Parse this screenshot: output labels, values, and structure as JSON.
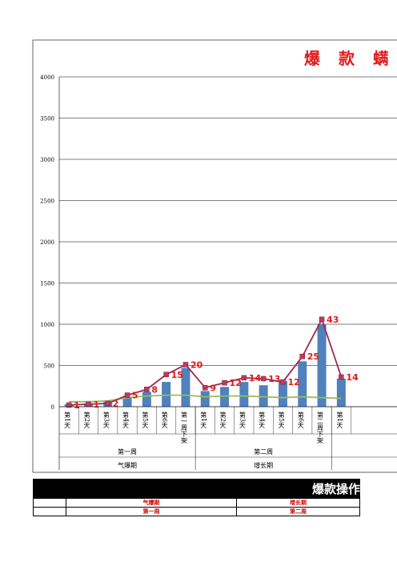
{
  "chart_data": {
    "type": "bar",
    "title": "爆 款 螨",
    "ylim": [
      0,
      4000
    ],
    "yticks": [
      0,
      500,
      1000,
      1500,
      2000,
      2500,
      3000,
      3500,
      4000
    ],
    "categories": [
      "第1天",
      "第2天",
      "第3天",
      "第4天",
      "第5天",
      "第6天",
      "第一周下架",
      "第1天",
      "第2天",
      "第3天",
      "第4天",
      "第5天",
      "第6天",
      "第二周下架",
      "第1天"
    ],
    "groups": [
      {
        "week": "第一周",
        "phase": "气爆期",
        "span": 7
      },
      {
        "week": "第二周",
        "phase": "增长期",
        "span": 7
      }
    ],
    "series": [
      {
        "type": "bar",
        "color": "#4f81bd",
        "values": [
          30,
          40,
          60,
          120,
          180,
          300,
          470,
          190,
          240,
          300,
          260,
          310,
          550,
          1000,
          340
        ]
      },
      {
        "type": "line",
        "color": "#a0294f",
        "values": [
          20,
          30,
          40,
          140,
          210,
          390,
          510,
          230,
          290,
          350,
          340,
          300,
          610,
          1060,
          360
        ],
        "labels": [
          "1",
          "1",
          "2",
          "5",
          "8",
          "15",
          "20",
          "9",
          "12",
          "14",
          "13",
          "12",
          "25",
          "43",
          "14"
        ]
      },
      {
        "type": "line",
        "color": "#9bbb59",
        "values": [
          60,
          60,
          70,
          110,
          130,
          140,
          140,
          120,
          130,
          130,
          120,
          110,
          120,
          110,
          100
        ]
      }
    ]
  },
  "band": {
    "title": "爆款操作"
  },
  "table": {
    "row1": [
      "",
      "气爆期",
      "增长期"
    ],
    "row2": [
      "",
      "第一周",
      "第二周"
    ]
  }
}
